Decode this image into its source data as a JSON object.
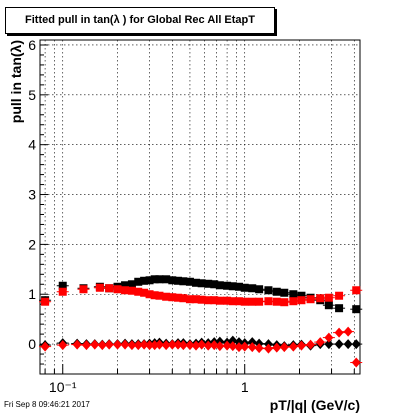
{
  "title": "Fitted pull in tan(λ ) for Global Rec All EtapT",
  "footer": "Fri Sep  8 09:46:21 2017",
  "chart_data": {
    "type": "scatter",
    "title": "Fitted pull in tan(λ ) for Global Rec All EtapT",
    "xlabel": "pT/|q| (GeV/c)",
    "ylabel": "pull in tan(λ)",
    "xscale": "log",
    "xlim": [
      0.075,
      4.3
    ],
    "ylim": [
      -0.6,
      6.1
    ],
    "grid": true,
    "y_ticks": [
      0,
      1,
      2,
      3,
      4,
      5,
      6
    ],
    "x_tick_labels": [
      {
        "value": 0.1,
        "label": "10⁻¹"
      },
      {
        "value": 1,
        "label": "1"
      }
    ],
    "series": [
      {
        "color": "#000000",
        "marker": "square",
        "x": [
          0.08,
          0.1,
          0.13,
          0.16,
          0.18,
          0.2,
          0.22,
          0.24,
          0.26,
          0.28,
          0.3,
          0.32,
          0.34,
          0.37,
          0.4,
          0.43,
          0.46,
          0.5,
          0.54,
          0.58,
          0.63,
          0.68,
          0.73,
          0.8,
          0.86,
          0.93,
          1.0,
          1.1,
          1.2,
          1.35,
          1.5,
          1.65,
          1.85,
          2.05,
          2.3,
          2.6,
          2.9,
          3.3,
          4.1
        ],
        "y": [
          0.88,
          1.17,
          1.12,
          1.15,
          1.12,
          1.15,
          1.18,
          1.2,
          1.25,
          1.27,
          1.28,
          1.3,
          1.3,
          1.3,
          1.28,
          1.27,
          1.26,
          1.25,
          1.23,
          1.22,
          1.21,
          1.2,
          1.18,
          1.17,
          1.16,
          1.15,
          1.13,
          1.12,
          1.1,
          1.08,
          1.05,
          1.03,
          1.0,
          0.97,
          0.93,
          0.88,
          0.78,
          0.72,
          0.7
        ]
      },
      {
        "color": "#ff0000",
        "marker": "square",
        "x": [
          0.08,
          0.1,
          0.13,
          0.16,
          0.18,
          0.2,
          0.22,
          0.24,
          0.26,
          0.28,
          0.3,
          0.32,
          0.34,
          0.37,
          0.4,
          0.43,
          0.46,
          0.5,
          0.54,
          0.58,
          0.63,
          0.68,
          0.73,
          0.8,
          0.86,
          0.93,
          1.0,
          1.1,
          1.2,
          1.35,
          1.5,
          1.65,
          1.85,
          2.05,
          2.3,
          2.6,
          2.9,
          3.3,
          4.1
        ],
        "y": [
          0.85,
          1.05,
          1.1,
          1.13,
          1.12,
          1.1,
          1.08,
          1.07,
          1.05,
          1.03,
          1.0,
          0.98,
          0.97,
          0.95,
          0.94,
          0.93,
          0.92,
          0.9,
          0.9,
          0.89,
          0.88,
          0.88,
          0.87,
          0.87,
          0.86,
          0.86,
          0.85,
          0.85,
          0.85,
          0.86,
          0.85,
          0.84,
          0.86,
          0.88,
          0.9,
          0.92,
          0.93,
          0.97,
          1.08
        ]
      },
      {
        "color": "#000000",
        "marker": "diamond",
        "x": [
          0.08,
          0.1,
          0.12,
          0.135,
          0.15,
          0.165,
          0.18,
          0.2,
          0.22,
          0.24,
          0.26,
          0.28,
          0.3,
          0.32,
          0.34,
          0.37,
          0.4,
          0.43,
          0.46,
          0.5,
          0.54,
          0.58,
          0.63,
          0.68,
          0.73,
          0.8,
          0.86,
          0.93,
          1.0,
          1.1,
          1.2,
          1.35,
          1.5,
          1.65,
          1.85,
          2.05,
          2.3,
          2.6,
          2.9,
          3.3,
          3.7,
          4.1
        ],
        "y": [
          -0.02,
          0.02,
          0.01,
          0.0,
          0.0,
          -0.01,
          0.0,
          0.0,
          0.01,
          0.0,
          0.0,
          0.0,
          0.01,
          0.02,
          0.03,
          0.01,
          0.0,
          0.02,
          0.02,
          0.0,
          0.01,
          0.03,
          0.02,
          0.04,
          0.05,
          0.03,
          0.07,
          0.04,
          0.02,
          0.04,
          0.01,
          0.0,
          -0.02,
          -0.04,
          -0.02,
          -0.01,
          -0.03,
          0.0,
          0.0,
          0.0,
          0.0,
          0.0
        ]
      },
      {
        "color": "#ff0000",
        "marker": "diamond",
        "x": [
          0.08,
          0.1,
          0.12,
          0.135,
          0.15,
          0.165,
          0.18,
          0.2,
          0.22,
          0.24,
          0.26,
          0.28,
          0.3,
          0.32,
          0.34,
          0.37,
          0.4,
          0.43,
          0.46,
          0.5,
          0.54,
          0.58,
          0.63,
          0.68,
          0.73,
          0.8,
          0.86,
          0.93,
          1.0,
          1.1,
          1.2,
          1.35,
          1.5,
          1.65,
          1.85,
          2.05,
          2.3,
          2.6,
          2.9,
          3.3,
          3.7,
          4.1
        ],
        "y": [
          -0.05,
          -0.02,
          -0.01,
          -0.02,
          -0.01,
          -0.02,
          -0.01,
          -0.01,
          -0.01,
          -0.02,
          -0.02,
          -0.01,
          -0.02,
          -0.02,
          -0.01,
          -0.02,
          -0.01,
          -0.01,
          -0.02,
          -0.02,
          -0.03,
          -0.01,
          -0.03,
          -0.02,
          -0.04,
          -0.03,
          -0.04,
          -0.06,
          -0.05,
          -0.06,
          -0.08,
          -0.09,
          -0.07,
          -0.06,
          -0.05,
          -0.03,
          -0.01,
          0.04,
          0.13,
          0.23,
          0.25,
          -0.37
        ]
      }
    ]
  }
}
